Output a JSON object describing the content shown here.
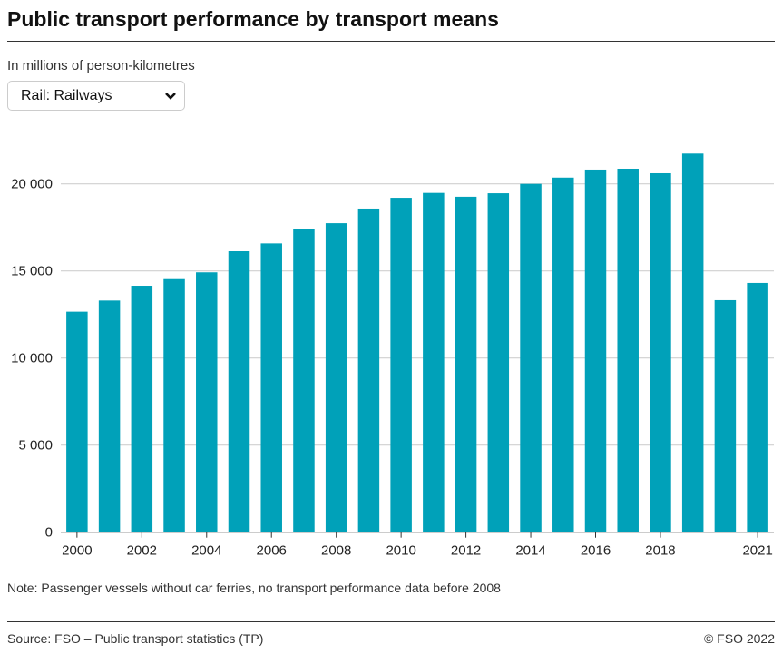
{
  "title": "Public transport performance by transport means",
  "subtitle": "In millions of person-kilometres",
  "dropdown": {
    "selected": "Rail: Railways",
    "icon": "chevron-down-icon"
  },
  "note": "Note: Passenger vessels without car ferries, no transport performance data before 2008",
  "source": "Source: FSO – Public transport statistics (TP)",
  "copyright": "© FSO 2022",
  "chart_data": {
    "type": "bar",
    "title": "",
    "xlabel": "",
    "ylabel": "",
    "ylim": [
      0,
      22000
    ],
    "yticks": [
      0,
      5000,
      10000,
      15000,
      20000
    ],
    "ytick_labels": [
      "0",
      "5 000",
      "10 000",
      "15 000",
      "20 000"
    ],
    "grid": true,
    "color": "#00a1b9",
    "categories": [
      "2000",
      "2001",
      "2002",
      "2003",
      "2004",
      "2005",
      "2006",
      "2007",
      "2008",
      "2009",
      "2010",
      "2011",
      "2012",
      "2013",
      "2014",
      "2015",
      "2016",
      "2017",
      "2018",
      "2019",
      "2020",
      "2021"
    ],
    "xtick_labels": [
      "2000",
      "2002",
      "2004",
      "2006",
      "2008",
      "2010",
      "2012",
      "2014",
      "2016",
      "2018",
      "2021"
    ],
    "values": [
      12660,
      13300,
      14150,
      14530,
      14920,
      16130,
      16580,
      17430,
      17740,
      18580,
      19200,
      19480,
      19260,
      19460,
      20000,
      20360,
      20820,
      20870,
      20610,
      21740,
      13320,
      14310
    ]
  }
}
